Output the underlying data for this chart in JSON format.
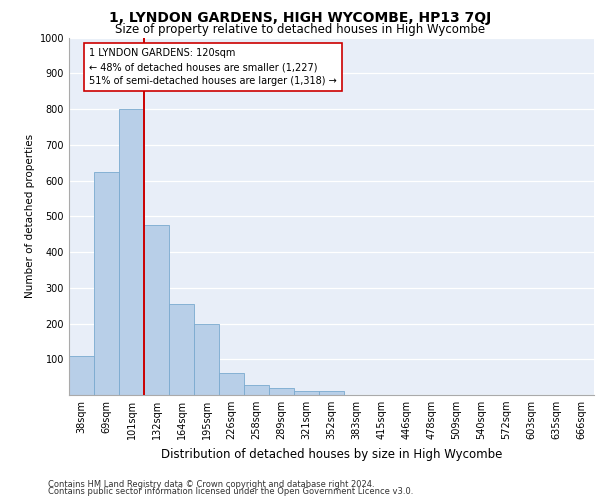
{
  "title": "1, LYNDON GARDENS, HIGH WYCOMBE, HP13 7QJ",
  "subtitle": "Size of property relative to detached houses in High Wycombe",
  "xlabel": "Distribution of detached houses by size in High Wycombe",
  "ylabel": "Number of detached properties",
  "bar_values": [
    110,
    625,
    800,
    475,
    255,
    200,
    62,
    28,
    20,
    10,
    10,
    0,
    0,
    0,
    0,
    0,
    0,
    0,
    0,
    0,
    0
  ],
  "bar_labels": [
    "38sqm",
    "69sqm",
    "101sqm",
    "132sqm",
    "164sqm",
    "195sqm",
    "226sqm",
    "258sqm",
    "289sqm",
    "321sqm",
    "352sqm",
    "383sqm",
    "415sqm",
    "446sqm",
    "478sqm",
    "509sqm",
    "540sqm",
    "572sqm",
    "603sqm",
    "635sqm",
    "666sqm"
  ],
  "bar_color": "#b8cfe8",
  "bar_edge_color": "#7aaacf",
  "vline_color": "#cc0000",
  "vline_x_index": 2.5,
  "annotation_text": "1 LYNDON GARDENS: 120sqm\n← 48% of detached houses are smaller (1,227)\n51% of semi-detached houses are larger (1,318) →",
  "annotation_box_color": "#ffffff",
  "annotation_box_edge_color": "#cc0000",
  "ylim": [
    0,
    1000
  ],
  "yticks": [
    0,
    100,
    200,
    300,
    400,
    500,
    600,
    700,
    800,
    900,
    1000
  ],
  "bg_color": "#e8eef8",
  "footer1": "Contains HM Land Registry data © Crown copyright and database right 2024.",
  "footer2": "Contains public sector information licensed under the Open Government Licence v3.0.",
  "title_fontsize": 10,
  "subtitle_fontsize": 8.5,
  "xlabel_fontsize": 8.5,
  "ylabel_fontsize": 7.5,
  "tick_fontsize": 7,
  "footer_fontsize": 6,
  "annot_fontsize": 7
}
